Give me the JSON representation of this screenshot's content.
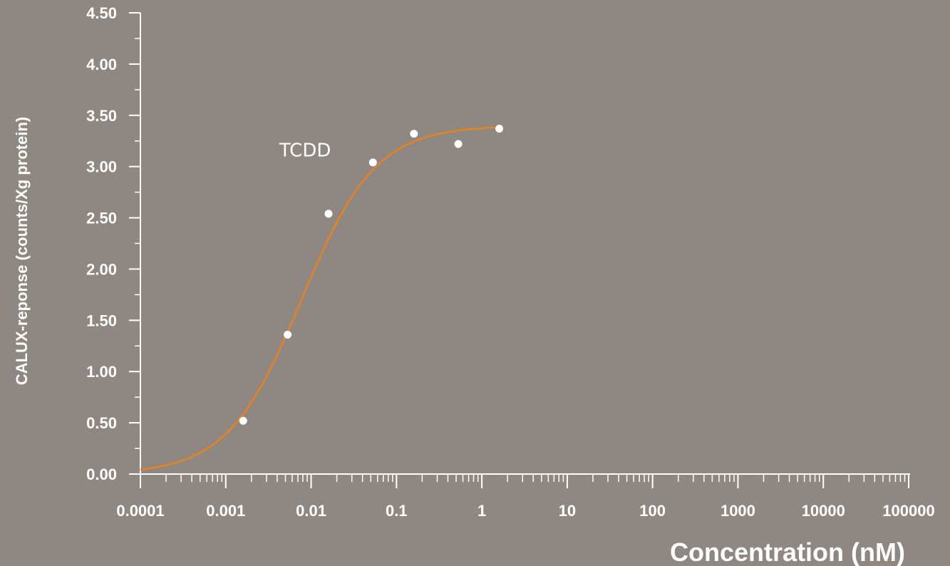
{
  "chart_data": {
    "type": "scatter",
    "title": "",
    "xlabel": "Concentration (nM)",
    "ylabel": "CALUX-reponse (counts/Xg protein)",
    "x_scale": "log",
    "xlim": [
      0.0001,
      100000
    ],
    "ylim": [
      0,
      4.5
    ],
    "x_tick_labels": [
      "0.0001",
      "0.001",
      "0.01",
      "0.1",
      "1",
      "10",
      "100",
      "1000",
      "10000",
      "100000"
    ],
    "y_tick_labels": [
      "0.00",
      "0.50",
      "1.00",
      "1.50",
      "2.00",
      "2.50",
      "3.00",
      "3.50",
      "4.00",
      "4.50"
    ],
    "grid": false,
    "series": [
      {
        "name": "TCDD",
        "points": [
          {
            "x": 0.0016,
            "y": 0.52
          },
          {
            "x": 0.0053,
            "y": 1.36
          },
          {
            "x": 0.016,
            "y": 2.54
          },
          {
            "x": 0.053,
            "y": 3.04
          },
          {
            "x": 0.16,
            "y": 3.32
          },
          {
            "x": 0.53,
            "y": 3.22
          },
          {
            "x": 1.6,
            "y": 3.37
          }
        ],
        "fit": {
          "model": "sigmoid",
          "bottom": 0.0,
          "top": 3.4,
          "ec50": 0.0077,
          "hill": 1.0,
          "x_range": [
            0.0001,
            1.6
          ]
        }
      }
    ],
    "annotations": [
      {
        "text": "TCDD",
        "x": 0.0085,
        "y": 3.1
      }
    ],
    "colors": {
      "background": "#8f8882",
      "curve": "#e8821e",
      "points": "#ffffff",
      "axes": "#ffffff",
      "text": "#ffffff"
    }
  }
}
